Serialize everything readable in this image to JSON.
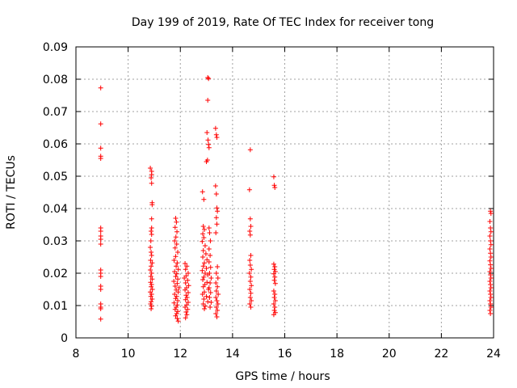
{
  "chart_data": {
    "type": "scatter",
    "title": "Day 199 of 2019, Rate Of TEC Index for receiver tong",
    "xlabel": "GPS time / hours",
    "ylabel": "ROTI / TECUs",
    "xlim": [
      8,
      24
    ],
    "ylim": [
      0,
      0.09
    ],
    "xticks": [
      8,
      10,
      12,
      14,
      16,
      18,
      20,
      22,
      24
    ],
    "yticks": [
      "0",
      "0.01",
      "0.02",
      "0.03",
      "0.04",
      "0.05",
      "0.06",
      "0.07",
      "0.08",
      "0.09"
    ],
    "ytick_values": [
      0,
      0.01,
      0.02,
      0.03,
      0.04,
      0.05,
      0.06,
      0.07,
      0.08,
      0.09
    ],
    "grid": true,
    "marker": "+",
    "marker_color": "#ff0000",
    "series": [
      {
        "name": "ROTI",
        "points": [
          [
            8.95,
            0.0773
          ],
          [
            8.95,
            0.0662
          ],
          [
            8.95,
            0.0587
          ],
          [
            8.95,
            0.0562
          ],
          [
            8.95,
            0.0555
          ],
          [
            8.95,
            0.034
          ],
          [
            8.95,
            0.033
          ],
          [
            8.95,
            0.0315
          ],
          [
            8.95,
            0.0305
          ],
          [
            8.95,
            0.029
          ],
          [
            8.95,
            0.021
          ],
          [
            8.95,
            0.02
          ],
          [
            8.95,
            0.019
          ],
          [
            8.95,
            0.016
          ],
          [
            8.95,
            0.015
          ],
          [
            8.95,
            0.0105
          ],
          [
            8.95,
            0.0095
          ],
          [
            8.95,
            0.009
          ],
          [
            8.95,
            0.0058
          ],
          [
            10.85,
            0.0525
          ],
          [
            10.9,
            0.0515
          ],
          [
            10.9,
            0.0505
          ],
          [
            10.88,
            0.0495
          ],
          [
            10.9,
            0.0478
          ],
          [
            10.92,
            0.0418
          ],
          [
            10.92,
            0.0412
          ],
          [
            10.9,
            0.0368
          ],
          [
            10.9,
            0.034
          ],
          [
            10.88,
            0.033
          ],
          [
            10.9,
            0.032
          ],
          [
            10.87,
            0.03
          ],
          [
            10.85,
            0.028
          ],
          [
            10.88,
            0.0265
          ],
          [
            10.9,
            0.0255
          ],
          [
            10.86,
            0.024
          ],
          [
            10.92,
            0.0232
          ],
          [
            10.88,
            0.0222
          ],
          [
            10.85,
            0.021
          ],
          [
            10.9,
            0.02
          ],
          [
            10.87,
            0.019
          ],
          [
            10.92,
            0.0182
          ],
          [
            10.86,
            0.0172
          ],
          [
            10.9,
            0.0165
          ],
          [
            10.88,
            0.0158
          ],
          [
            10.93,
            0.015
          ],
          [
            10.85,
            0.0142
          ],
          [
            10.9,
            0.0135
          ],
          [
            10.87,
            0.0128
          ],
          [
            10.92,
            0.012
          ],
          [
            10.88,
            0.0112
          ],
          [
            10.86,
            0.0105
          ],
          [
            10.9,
            0.0098
          ],
          [
            10.88,
            0.009
          ],
          [
            11.82,
            0.037
          ],
          [
            11.85,
            0.0358
          ],
          [
            11.8,
            0.0342
          ],
          [
            11.87,
            0.0328
          ],
          [
            11.83,
            0.0312
          ],
          [
            11.78,
            0.03
          ],
          [
            11.86,
            0.029
          ],
          [
            11.8,
            0.0278
          ],
          [
            11.9,
            0.0265
          ],
          [
            11.82,
            0.0252
          ],
          [
            11.76,
            0.024
          ],
          [
            11.88,
            0.0232
          ],
          [
            11.84,
            0.0222
          ],
          [
            11.92,
            0.0212
          ],
          [
            11.78,
            0.0205
          ],
          [
            11.86,
            0.0198
          ],
          [
            11.82,
            0.019
          ],
          [
            11.9,
            0.0182
          ],
          [
            11.75,
            0.0175
          ],
          [
            11.88,
            0.0168
          ],
          [
            11.8,
            0.016
          ],
          [
            11.95,
            0.0155
          ],
          [
            11.84,
            0.0148
          ],
          [
            11.92,
            0.0142
          ],
          [
            11.78,
            0.0135
          ],
          [
            11.86,
            0.0128
          ],
          [
            11.82,
            0.0122
          ],
          [
            11.9,
            0.0115
          ],
          [
            11.76,
            0.0108
          ],
          [
            11.88,
            0.0102
          ],
          [
            11.84,
            0.0095
          ],
          [
            11.8,
            0.0088
          ],
          [
            11.9,
            0.0082
          ],
          [
            11.86,
            0.0075
          ],
          [
            11.82,
            0.0068
          ],
          [
            11.88,
            0.006
          ],
          [
            11.92,
            0.0052
          ],
          [
            12.18,
            0.023
          ],
          [
            12.25,
            0.0222
          ],
          [
            12.2,
            0.0212
          ],
          [
            12.3,
            0.02
          ],
          [
            12.22,
            0.0192
          ],
          [
            12.15,
            0.0185
          ],
          [
            12.28,
            0.0178
          ],
          [
            12.2,
            0.017
          ],
          [
            12.32,
            0.0162
          ],
          [
            12.24,
            0.0155
          ],
          [
            12.18,
            0.0148
          ],
          [
            12.3,
            0.014
          ],
          [
            12.22,
            0.0132
          ],
          [
            12.26,
            0.0125
          ],
          [
            12.2,
            0.0118
          ],
          [
            12.3,
            0.011
          ],
          [
            12.24,
            0.0102
          ],
          [
            12.18,
            0.0095
          ],
          [
            12.28,
            0.0088
          ],
          [
            12.22,
            0.008
          ],
          [
            12.25,
            0.0072
          ],
          [
            12.2,
            0.0062
          ],
          [
            12.85,
            0.0452
          ],
          [
            12.9,
            0.0428
          ],
          [
            12.88,
            0.0345
          ],
          [
            12.92,
            0.0335
          ],
          [
            12.86,
            0.0322
          ],
          [
            12.9,
            0.031
          ],
          [
            12.84,
            0.0298
          ],
          [
            12.95,
            0.0285
          ],
          [
            12.88,
            0.027
          ],
          [
            12.98,
            0.026
          ],
          [
            12.86,
            0.025
          ],
          [
            13.02,
            0.0242
          ],
          [
            12.92,
            0.0232
          ],
          [
            12.88,
            0.0222
          ],
          [
            13.0,
            0.0215
          ],
          [
            12.84,
            0.0208
          ],
          [
            12.95,
            0.02
          ],
          [
            13.05,
            0.0195
          ],
          [
            12.9,
            0.0188
          ],
          [
            12.86,
            0.018
          ],
          [
            13.02,
            0.0172
          ],
          [
            12.94,
            0.0165
          ],
          [
            12.88,
            0.0158
          ],
          [
            13.08,
            0.015
          ],
          [
            12.92,
            0.0142
          ],
          [
            12.85,
            0.0135
          ],
          [
            13.0,
            0.0128
          ],
          [
            12.9,
            0.012
          ],
          [
            13.05,
            0.0112
          ],
          [
            12.88,
            0.0105
          ],
          [
            12.95,
            0.0098
          ],
          [
            12.92,
            0.009
          ],
          [
            13.05,
            0.0805
          ],
          [
            13.08,
            0.0802
          ],
          [
            13.05,
            0.0735
          ],
          [
            13.02,
            0.0635
          ],
          [
            13.06,
            0.0612
          ],
          [
            13.08,
            0.0598
          ],
          [
            13.1,
            0.0588
          ],
          [
            13.04,
            0.055
          ],
          [
            13.0,
            0.0545
          ],
          [
            13.1,
            0.034
          ],
          [
            13.12,
            0.0325
          ],
          [
            13.15,
            0.03
          ],
          [
            13.1,
            0.0275
          ],
          [
            13.14,
            0.0255
          ],
          [
            13.1,
            0.0235
          ],
          [
            13.16,
            0.0218
          ],
          [
            13.12,
            0.02
          ],
          [
            13.18,
            0.0185
          ],
          [
            13.14,
            0.017
          ],
          [
            13.1,
            0.0155
          ],
          [
            13.16,
            0.014
          ],
          [
            13.12,
            0.0125
          ],
          [
            13.18,
            0.011
          ],
          [
            13.14,
            0.0095
          ],
          [
            13.35,
            0.0648
          ],
          [
            13.38,
            0.0628
          ],
          [
            13.4,
            0.062
          ],
          [
            13.35,
            0.047
          ],
          [
            13.38,
            0.0445
          ],
          [
            13.4,
            0.0402
          ],
          [
            13.42,
            0.0392
          ],
          [
            13.38,
            0.0372
          ],
          [
            13.4,
            0.0352
          ],
          [
            13.36,
            0.0325
          ],
          [
            13.42,
            0.022
          ],
          [
            13.38,
            0.02
          ],
          [
            13.44,
            0.0185
          ],
          [
            13.36,
            0.017
          ],
          [
            13.42,
            0.0158
          ],
          [
            13.38,
            0.0145
          ],
          [
            13.45,
            0.0135
          ],
          [
            13.36,
            0.0125
          ],
          [
            13.4,
            0.0115
          ],
          [
            13.44,
            0.0105
          ],
          [
            13.38,
            0.0095
          ],
          [
            13.42,
            0.0085
          ],
          [
            13.36,
            0.0075
          ],
          [
            13.4,
            0.0065
          ],
          [
            14.68,
            0.0582
          ],
          [
            14.65,
            0.0458
          ],
          [
            14.68,
            0.0368
          ],
          [
            14.7,
            0.0345
          ],
          [
            14.66,
            0.033
          ],
          [
            14.68,
            0.0318
          ],
          [
            14.7,
            0.0255
          ],
          [
            14.66,
            0.024
          ],
          [
            14.68,
            0.0225
          ],
          [
            14.72,
            0.0212
          ],
          [
            14.65,
            0.02
          ],
          [
            14.7,
            0.0188
          ],
          [
            14.68,
            0.0175
          ],
          [
            14.72,
            0.0162
          ],
          [
            14.66,
            0.015
          ],
          [
            14.7,
            0.0138
          ],
          [
            14.68,
            0.0125
          ],
          [
            14.72,
            0.0115
          ],
          [
            14.66,
            0.0105
          ],
          [
            14.7,
            0.0095
          ],
          [
            15.58,
            0.0498
          ],
          [
            15.6,
            0.0472
          ],
          [
            15.62,
            0.0465
          ],
          [
            15.58,
            0.0228
          ],
          [
            15.62,
            0.022
          ],
          [
            15.6,
            0.0212
          ],
          [
            15.64,
            0.0205
          ],
          [
            15.58,
            0.0198
          ],
          [
            15.62,
            0.0188
          ],
          [
            15.6,
            0.0178
          ],
          [
            15.64,
            0.0168
          ],
          [
            15.58,
            0.0145
          ],
          [
            15.62,
            0.0135
          ],
          [
            15.6,
            0.0125
          ],
          [
            15.64,
            0.0115
          ],
          [
            15.58,
            0.0105
          ],
          [
            15.62,
            0.0095
          ],
          [
            15.6,
            0.0085
          ],
          [
            15.64,
            0.0078
          ],
          [
            15.58,
            0.0072
          ],
          [
            23.88,
            0.0392
          ],
          [
            23.9,
            0.0385
          ],
          [
            23.86,
            0.036
          ],
          [
            23.88,
            0.034
          ],
          [
            23.9,
            0.0328
          ],
          [
            23.86,
            0.0315
          ],
          [
            23.88,
            0.03
          ],
          [
            23.9,
            0.0288
          ],
          [
            23.86,
            0.0275
          ],
          [
            23.88,
            0.0262
          ],
          [
            23.9,
            0.025
          ],
          [
            23.86,
            0.0238
          ],
          [
            23.88,
            0.0226
          ],
          [
            23.9,
            0.0215
          ],
          [
            23.86,
            0.0205
          ],
          [
            23.88,
            0.0195
          ],
          [
            23.9,
            0.0185
          ],
          [
            23.86,
            0.0175
          ],
          [
            23.88,
            0.0165
          ],
          [
            23.9,
            0.0155
          ],
          [
            23.86,
            0.0145
          ],
          [
            23.88,
            0.0135
          ],
          [
            23.9,
            0.0125
          ],
          [
            23.86,
            0.0115
          ],
          [
            23.88,
            0.0105
          ],
          [
            23.9,
            0.0095
          ],
          [
            23.86,
            0.0085
          ],
          [
            23.88,
            0.0075
          ]
        ]
      }
    ]
  }
}
